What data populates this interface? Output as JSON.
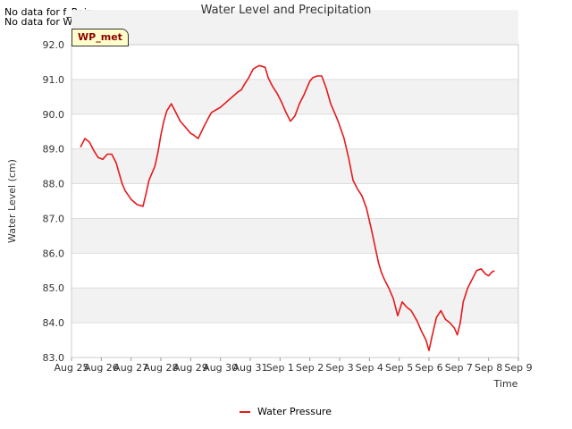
{
  "no_data_notes": [
    "No data for f_Rain",
    "No data for WP Staff Gauge"
  ],
  "badge": "WP_met",
  "legend": [
    {
      "label": "Water Pressure",
      "color": "#e41a1c"
    }
  ],
  "chart_data": {
    "type": "line",
    "title": "Water Level and Precipitation",
    "xlabel": "Time",
    "ylabel": "Water Level (cm)",
    "ylim": [
      83.0,
      92.0
    ],
    "yticks": [
      "83.0",
      "84.0",
      "85.0",
      "86.0",
      "87.0",
      "88.0",
      "89.0",
      "90.0",
      "91.0",
      "92.0"
    ],
    "xlim": [
      0,
      15
    ],
    "xticks": [
      "Aug 25",
      "Aug 26",
      "Aug 27",
      "Aug 28",
      "Aug 29",
      "Aug 30",
      "Aug 31",
      "Sep 1",
      "Sep 2",
      "Sep 3",
      "Sep 4",
      "Sep 5",
      "Sep 6",
      "Sep 7",
      "Sep 8",
      "Sep 9"
    ],
    "series": [
      {
        "name": "Water Pressure",
        "color": "#e41a1c",
        "x": [
          0.3,
          0.45,
          0.6,
          0.75,
          0.9,
          1.05,
          1.2,
          1.35,
          1.5,
          1.6,
          1.7,
          1.8,
          2.0,
          2.2,
          2.4,
          2.5,
          2.6,
          2.8,
          2.9,
          3.0,
          3.1,
          3.2,
          3.35,
          3.5,
          3.65,
          3.8,
          3.9,
          4.0,
          4.1,
          4.25,
          4.45,
          4.6,
          4.7,
          5.0,
          5.6,
          5.7,
          5.8,
          5.95,
          6.1,
          6.3,
          6.5,
          6.6,
          6.75,
          6.9,
          7.05,
          7.2,
          7.35,
          7.5,
          7.65,
          7.8,
          7.9,
          8.0,
          8.1,
          8.25,
          8.4,
          8.55,
          8.7,
          8.85,
          8.95,
          9.05,
          9.15,
          9.3,
          9.45,
          9.6,
          9.75,
          9.9,
          10.05,
          10.2,
          10.3,
          10.4,
          10.5,
          10.65,
          10.8,
          10.95,
          11.1,
          11.25,
          11.4,
          11.6,
          11.75,
          11.9,
          12.0,
          12.1,
          12.25,
          12.4,
          12.55,
          12.7,
          12.85,
          12.95,
          13.05,
          13.15,
          13.3,
          13.45,
          13.6,
          13.75,
          13.8,
          13.9,
          14.0,
          14.1,
          14.2
        ],
        "values": [
          89.05,
          89.3,
          89.2,
          88.95,
          88.75,
          88.7,
          88.85,
          88.85,
          88.6,
          88.3,
          88.0,
          87.8,
          87.55,
          87.4,
          87.35,
          87.7,
          88.1,
          88.5,
          88.9,
          89.4,
          89.8,
          90.1,
          90.3,
          90.05,
          89.8,
          89.65,
          89.55,
          89.45,
          89.4,
          89.3,
          89.65,
          89.9,
          90.05,
          90.2,
          90.65,
          90.7,
          90.85,
          91.05,
          91.3,
          91.4,
          91.35,
          91.05,
          90.8,
          90.6,
          90.35,
          90.05,
          89.8,
          89.95,
          90.3,
          90.55,
          90.75,
          90.95,
          91.05,
          91.1,
          91.1,
          90.75,
          90.3,
          90.0,
          89.8,
          89.55,
          89.3,
          88.75,
          88.1,
          87.85,
          87.65,
          87.3,
          86.75,
          86.15,
          85.75,
          85.45,
          85.25,
          85.0,
          84.7,
          84.2,
          84.6,
          84.45,
          84.35,
          84.05,
          83.75,
          83.5,
          83.2,
          83.6,
          84.15,
          84.35,
          84.1,
          84.0,
          83.85,
          83.65,
          84.0,
          84.6,
          85.0,
          85.25,
          85.5,
          85.55,
          85.5,
          85.4,
          85.35,
          85.45,
          85.5
        ]
      }
    ],
    "grid": true,
    "legend_position": "bottom-center"
  }
}
